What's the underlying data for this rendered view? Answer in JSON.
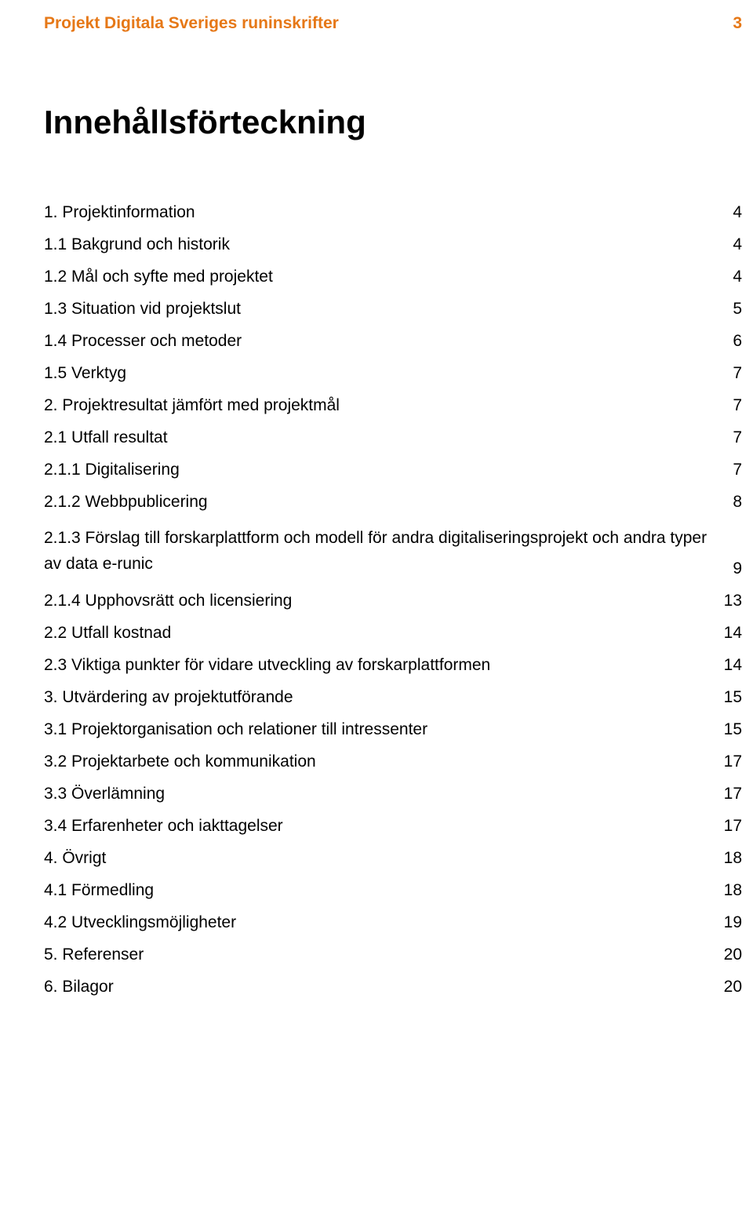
{
  "colors": {
    "accent": "#e67817",
    "text": "#000000",
    "background": "#ffffff"
  },
  "header": {
    "title": "Projekt Digitala Sveriges runinskrifter",
    "page_number": "3"
  },
  "heading": "Innehållsförteckning",
  "toc": [
    {
      "label": "1. Projektinformation",
      "page": "4",
      "indent": 0
    },
    {
      "label": "1.1 Bakgrund och historik",
      "page": "4",
      "indent": 1
    },
    {
      "label": "1.2 Mål och syfte med projektet",
      "page": "4",
      "indent": 1
    },
    {
      "label": "1.3 Situation vid projektslut",
      "page": "5",
      "indent": 1
    },
    {
      "label": "1.4 Processer och metoder",
      "page": "6",
      "indent": 1
    },
    {
      "label": "1.5 Verktyg",
      "page": "7",
      "indent": 1
    },
    {
      "label": "2. Projektresultat jämfört med projektmål",
      "page": "7",
      "indent": 0
    },
    {
      "label": "2.1 Utfall resultat",
      "page": "7",
      "indent": 1
    },
    {
      "label": "2.1.1 Digitalisering",
      "page": "7",
      "indent": 2
    },
    {
      "label": "2.1.2 Webbpublicering",
      "page": "8",
      "indent": 2
    },
    {
      "label": "2.1.3 Förslag till forskarplattform och modell för andra digitaliseringsprojekt och andra typer av data e-runic",
      "page": "9",
      "indent": 2,
      "multiline": true
    },
    {
      "label": "2.1.4 Upphovsrätt och licensiering",
      "page": "13",
      "indent": 2
    },
    {
      "label": "2.2 Utfall kostnad",
      "page": "14",
      "indent": 1
    },
    {
      "label": "2.3 Viktiga punkter för vidare utveckling av forskarplattformen",
      "page": "14",
      "indent": 1
    },
    {
      "label": "3. Utvärdering av projektutförande",
      "page": "15",
      "indent": 0
    },
    {
      "label": "3.1 Projektorganisation och relationer till intressenter",
      "page": "15",
      "indent": 1
    },
    {
      "label": "3.2 Projektarbete och kommunikation",
      "page": "17",
      "indent": 1
    },
    {
      "label": "3.3 Överlämning",
      "page": "17",
      "indent": 1
    },
    {
      "label": "3.4 Erfarenheter och iakttagelser",
      "page": "17",
      "indent": 1
    },
    {
      "label": "4. Övrigt",
      "page": "18",
      "indent": 0
    },
    {
      "label": "4.1 Förmedling",
      "page": "18",
      "indent": 1
    },
    {
      "label": "4.2 Utvecklingsmöjligheter",
      "page": "19",
      "indent": 1
    },
    {
      "label": "5. Referenser",
      "page": "20",
      "indent": 0
    },
    {
      "label": "6. Bilagor",
      "page": "20",
      "indent": 0
    }
  ]
}
